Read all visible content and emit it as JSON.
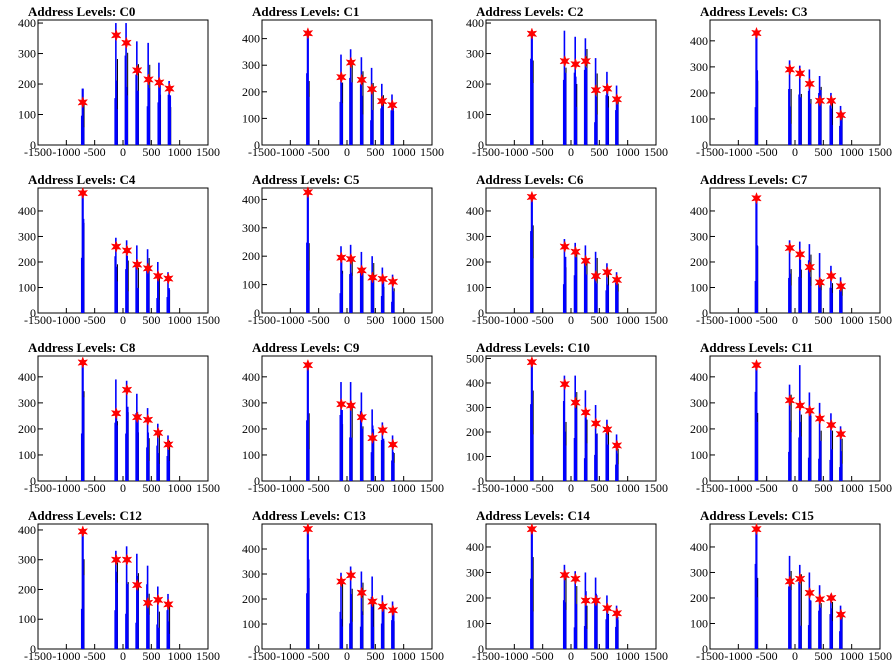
{
  "page": {
    "background": "#ffffff",
    "histogram_color": "#0000ff",
    "overlay_color": "#000000",
    "marker_color": "#ff0000"
  },
  "chart_data": [
    {
      "type": "bar",
      "title": "Address Levels: C0",
      "xlim": [
        -1500,
        1500
      ],
      "ylim": [
        0,
        410
      ],
      "x_ticks": [
        "-1500",
        "-1000",
        "-500",
        "0",
        "500",
        "1000",
        "1500"
      ],
      "y_ticks": [
        "0",
        "100",
        "200",
        "300",
        "400"
      ],
      "peak_x": [
        -710,
        -120,
        60,
        250,
        450,
        640,
        820
      ],
      "peak_y": [
        140,
        360,
        335,
        245,
        215,
        205,
        185
      ],
      "bar_max": [
        185,
        400,
        400,
        340,
        335,
        270,
        210
      ]
    },
    {
      "type": "bar",
      "title": "Address Levels: C1",
      "xlim": [
        -1500,
        1500
      ],
      "ylim": [
        0,
        470
      ],
      "x_ticks": [
        "-1500",
        "-1000",
        "-500",
        "0",
        "500",
        "1000",
        "1500"
      ],
      "y_ticks": [
        "0",
        "100",
        "200",
        "300",
        "400"
      ],
      "peak_x": [
        -690,
        -100,
        70,
        260,
        440,
        620,
        800
      ],
      "peak_y": [
        420,
        255,
        310,
        245,
        210,
        165,
        150
      ],
      "bar_max": [
        420,
        340,
        360,
        330,
        290,
        230,
        190
      ]
    },
    {
      "type": "bar",
      "title": "Address Levels: C2",
      "xlim": [
        -1500,
        1500
      ],
      "ylim": [
        0,
        410
      ],
      "x_ticks": [
        "-1500",
        "-1000",
        "-500",
        "0",
        "500",
        "1000",
        "1500"
      ],
      "y_ticks": [
        "0",
        "100",
        "200",
        "300",
        "400"
      ],
      "peak_x": [
        -690,
        -110,
        80,
        260,
        440,
        640,
        810
      ],
      "peak_y": [
        365,
        275,
        265,
        275,
        180,
        185,
        150
      ],
      "bar_max": [
        370,
        375,
        355,
        350,
        285,
        240,
        195
      ]
    },
    {
      "type": "bar",
      "title": "Address Levels: C3",
      "xlim": [
        -1500,
        1500
      ],
      "ylim": [
        0,
        480
      ],
      "x_ticks": [
        "-1500",
        "-1000",
        "-500",
        "0",
        "500",
        "1000",
        "1500"
      ],
      "y_ticks": [
        "0",
        "100",
        "200",
        "300",
        "400"
      ],
      "peak_x": [
        -680,
        -90,
        90,
        260,
        440,
        640,
        810
      ],
      "peak_y": [
        430,
        290,
        275,
        235,
        170,
        170,
        115
      ],
      "bar_max": [
        430,
        325,
        305,
        290,
        265,
        200,
        150
      ]
    },
    {
      "type": "bar",
      "title": "Address Levels: C4",
      "xlim": [
        -1500,
        1500
      ],
      "ylim": [
        0,
        490
      ],
      "x_ticks": [
        "-1500",
        "-1000",
        "-500",
        "0",
        "500",
        "1000",
        "1500"
      ],
      "y_ticks": [
        "0",
        "100",
        "200",
        "300",
        "400"
      ],
      "peak_x": [
        -710,
        -120,
        70,
        250,
        440,
        620,
        800
      ],
      "peak_y": [
        470,
        260,
        245,
        190,
        175,
        145,
        135
      ],
      "bar_max": [
        470,
        295,
        285,
        265,
        250,
        200,
        160
      ]
    },
    {
      "type": "bar",
      "title": "Address Levels: C5",
      "xlim": [
        -1500,
        1500
      ],
      "ylim": [
        0,
        440
      ],
      "x_ticks": [
        "-1500",
        "-1000",
        "-500",
        "0",
        "500",
        "1000",
        "1500"
      ],
      "y_ticks": [
        "0",
        "100",
        "200",
        "300",
        "400"
      ],
      "peak_x": [
        -690,
        -100,
        70,
        260,
        450,
        630,
        810
      ],
      "peak_y": [
        425,
        195,
        190,
        150,
        125,
        120,
        110
      ],
      "bar_max": [
        425,
        235,
        240,
        215,
        200,
        160,
        135
      ]
    },
    {
      "type": "bar",
      "title": "Address Levels: C6",
      "xlim": [
        -1500,
        1500
      ],
      "ylim": [
        0,
        490
      ],
      "x_ticks": [
        "-1500",
        "-1000",
        "-500",
        "0",
        "500",
        "1000",
        "1500"
      ],
      "y_ticks": [
        "0",
        "100",
        "200",
        "300",
        "400"
      ],
      "peak_x": [
        -690,
        -110,
        80,
        260,
        440,
        640,
        810
      ],
      "peak_y": [
        455,
        260,
        240,
        205,
        145,
        160,
        130
      ],
      "bar_max": [
        455,
        290,
        275,
        265,
        240,
        195,
        160
      ]
    },
    {
      "type": "bar",
      "title": "Address Levels: C7",
      "xlim": [
        -1500,
        1500
      ],
      "ylim": [
        0,
        490
      ],
      "x_ticks": [
        "-1500",
        "-1000",
        "-500",
        "0",
        "500",
        "1000",
        "1500"
      ],
      "y_ticks": [
        "0",
        "100",
        "200",
        "300",
        "400"
      ],
      "peak_x": [
        -680,
        -90,
        90,
        260,
        440,
        640,
        810
      ],
      "peak_y": [
        450,
        255,
        230,
        180,
        120,
        145,
        105
      ],
      "bar_max": [
        450,
        285,
        280,
        270,
        235,
        185,
        140
      ]
    },
    {
      "type": "bar",
      "title": "Address Levels: C8",
      "xlim": [
        -1500,
        1500
      ],
      "ylim": [
        0,
        480
      ],
      "x_ticks": [
        "-1500",
        "-1000",
        "-500",
        "0",
        "500",
        "1000",
        "1500"
      ],
      "y_ticks": [
        "0",
        "100",
        "200",
        "300",
        "400"
      ],
      "peak_x": [
        -710,
        -120,
        70,
        250,
        440,
        620,
        800
      ],
      "peak_y": [
        455,
        260,
        350,
        245,
        235,
        185,
        140
      ],
      "bar_max": [
        455,
        390,
        385,
        335,
        280,
        220,
        175
      ]
    },
    {
      "type": "bar",
      "title": "Address Levels: C9",
      "xlim": [
        -1500,
        1500
      ],
      "ylim": [
        0,
        480
      ],
      "x_ticks": [
        "-1500",
        "-1000",
        "-500",
        "0",
        "500",
        "1000",
        "1500"
      ],
      "y_ticks": [
        "0",
        "100",
        "200",
        "300",
        "400"
      ],
      "peak_x": [
        -690,
        -100,
        70,
        260,
        450,
        630,
        810
      ],
      "peak_y": [
        445,
        295,
        290,
        245,
        165,
        195,
        140
      ],
      "bar_max": [
        445,
        380,
        380,
        340,
        275,
        225,
        175
      ]
    },
    {
      "type": "bar",
      "title": "Address Levels: C10",
      "xlim": [
        -1500,
        1500
      ],
      "ylim": [
        0,
        510
      ],
      "x_ticks": [
        "-1500",
        "-1000",
        "-500",
        "0",
        "500",
        "1000",
        "1500"
      ],
      "y_ticks": [
        "0",
        "100",
        "200",
        "300",
        "400",
        "500"
      ],
      "peak_x": [
        -690,
        -110,
        80,
        260,
        440,
        640,
        810
      ],
      "peak_y": [
        485,
        395,
        320,
        280,
        235,
        210,
        145
      ],
      "bar_max": [
        485,
        430,
        430,
        370,
        310,
        250,
        190
      ]
    },
    {
      "type": "bar",
      "title": "Address Levels: C11",
      "xlim": [
        -1500,
        1500
      ],
      "ylim": [
        0,
        480
      ],
      "x_ticks": [
        "-1500",
        "-1000",
        "-500",
        "0",
        "500",
        "1000",
        "1500"
      ],
      "y_ticks": [
        "0",
        "100",
        "200",
        "300",
        "400"
      ],
      "peak_x": [
        -680,
        -90,
        90,
        260,
        440,
        640,
        810
      ],
      "peak_y": [
        445,
        310,
        290,
        270,
        240,
        215,
        180
      ],
      "bar_max": [
        445,
        370,
        445,
        340,
        300,
        260,
        210
      ]
    },
    {
      "type": "bar",
      "title": "Address Levels: C12",
      "xlim": [
        -1500,
        1500
      ],
      "ylim": [
        0,
        420
      ],
      "x_ticks": [
        "-1500",
        "-1000",
        "-500",
        "0",
        "500",
        "1000",
        "1500"
      ],
      "y_ticks": [
        "0",
        "100",
        "200",
        "300",
        "400"
      ],
      "peak_x": [
        -710,
        -120,
        70,
        250,
        440,
        620,
        800
      ],
      "peak_y": [
        395,
        300,
        300,
        215,
        155,
        165,
        150
      ],
      "bar_max": [
        395,
        330,
        345,
        320,
        280,
        210,
        185
      ]
    },
    {
      "type": "bar",
      "title": "Address Levels: C13",
      "xlim": [
        -1500,
        1500
      ],
      "ylim": [
        0,
        500
      ],
      "x_ticks": [
        "-1500",
        "-1000",
        "-500",
        "0",
        "500",
        "1000",
        "1500"
      ],
      "y_ticks": [
        "0",
        "100",
        "200",
        "300",
        "400"
      ],
      "peak_x": [
        -690,
        -100,
        70,
        260,
        450,
        630,
        810
      ],
      "peak_y": [
        480,
        270,
        295,
        225,
        190,
        170,
        155
      ],
      "bar_max": [
        480,
        305,
        330,
        310,
        290,
        215,
        190
      ]
    },
    {
      "type": "bar",
      "title": "Address Levels: C14",
      "xlim": [
        -1500,
        1500
      ],
      "ylim": [
        0,
        490
      ],
      "x_ticks": [
        "-1500",
        "-1000",
        "-500",
        "0",
        "500",
        "1000",
        "1500"
      ],
      "y_ticks": [
        "0",
        "100",
        "200",
        "300",
        "400"
      ],
      "peak_x": [
        -690,
        -110,
        80,
        260,
        440,
        640,
        810
      ],
      "peak_y": [
        470,
        290,
        275,
        190,
        190,
        160,
        140
      ],
      "bar_max": [
        470,
        330,
        305,
        300,
        280,
        210,
        170
      ]
    },
    {
      "type": "bar",
      "title": "Address Levels: C15",
      "xlim": [
        -1500,
        1500
      ],
      "ylim": [
        0,
        490
      ],
      "x_ticks": [
        "-1500",
        "-1000",
        "-500",
        "0",
        "500",
        "1000",
        "1500"
      ],
      "y_ticks": [
        "0",
        "100",
        "200",
        "300",
        "400"
      ],
      "peak_x": [
        -680,
        -90,
        90,
        260,
        440,
        640,
        810
      ],
      "peak_y": [
        470,
        265,
        275,
        220,
        195,
        200,
        135
      ],
      "bar_max": [
        470,
        365,
        330,
        300,
        250,
        215,
        170
      ]
    }
  ]
}
